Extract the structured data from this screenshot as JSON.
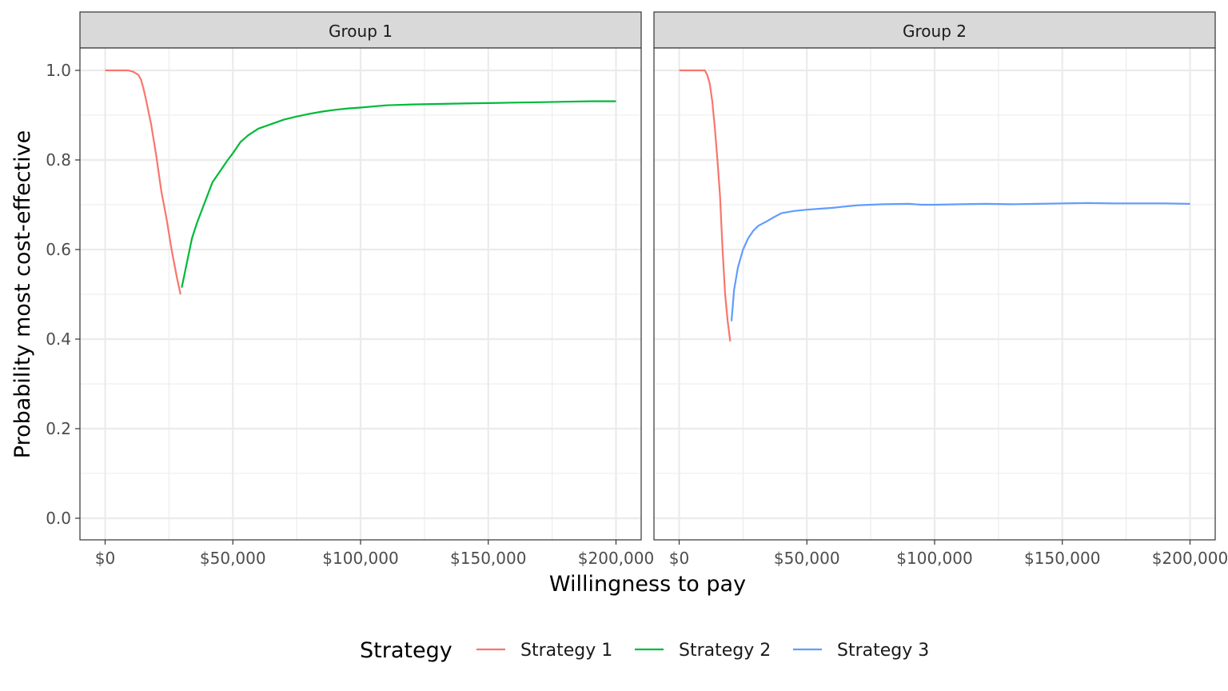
{
  "chart_data": {
    "type": "line",
    "xlabel": "Willingness to pay",
    "ylabel": "Probability most cost-effective",
    "xlim": [
      0,
      200000
    ],
    "ylim": [
      0,
      1
    ],
    "x_ticks": [
      0,
      50000,
      100000,
      150000,
      200000
    ],
    "x_tick_labels": [
      "$0",
      "$50,000",
      "$100,000",
      "$150,000",
      "$200,000"
    ],
    "y_ticks": [
      0,
      0.2,
      0.4,
      0.6,
      0.8,
      1.0
    ],
    "y_tick_labels": [
      "0.0",
      "0.2",
      "0.4",
      "0.6",
      "0.8",
      "1.0"
    ],
    "grid": true,
    "legend": {
      "title": "Strategy",
      "position": "bottom",
      "entries": [
        {
          "label": "Strategy 1",
          "color": "#F8766D"
        },
        {
          "label": "Strategy 2",
          "color": "#00BA38"
        },
        {
          "label": "Strategy 3",
          "color": "#619CFF"
        }
      ]
    },
    "panels": [
      {
        "label": "Group 1",
        "series": [
          {
            "name": "Strategy 1",
            "color": "#F8766D",
            "x": [
              0,
              5000,
              9000,
              11000,
              13000,
              14000,
              15000,
              16000,
              18000,
              20000,
              22000,
              24000,
              26000,
              28000,
              29500
            ],
            "y": [
              1.0,
              1.0,
              1.0,
              0.997,
              0.99,
              0.98,
              0.96,
              0.935,
              0.88,
              0.81,
              0.73,
              0.67,
              0.6,
              0.54,
              0.5
            ]
          },
          {
            "name": "Strategy 2",
            "color": "#00BA38",
            "x": [
              30000,
              32000,
              34000,
              36000,
              38000,
              40000,
              42000,
              45000,
              48000,
              50000,
              53000,
              56000,
              60000,
              65000,
              70000,
              75000,
              80000,
              85000,
              90000,
              95000,
              100000,
              110000,
              120000,
              130000,
              140000,
              150000,
              160000,
              170000,
              180000,
              190000,
              200000
            ],
            "y": [
              0.515,
              0.57,
              0.625,
              0.66,
              0.69,
              0.72,
              0.75,
              0.775,
              0.8,
              0.815,
              0.84,
              0.855,
              0.87,
              0.88,
              0.89,
              0.897,
              0.903,
              0.908,
              0.912,
              0.915,
              0.917,
              0.922,
              0.924,
              0.925,
              0.926,
              0.927,
              0.928,
              0.929,
              0.93,
              0.931,
              0.931
            ]
          }
        ]
      },
      {
        "label": "Group 2",
        "series": [
          {
            "name": "Strategy 1",
            "color": "#F8766D",
            "x": [
              0,
              5000,
              10000,
              11000,
              12000,
              13000,
              14000,
              15000,
              16000,
              17000,
              18000,
              19000,
              20000
            ],
            "y": [
              1.0,
              1.0,
              1.0,
              0.99,
              0.97,
              0.93,
              0.87,
              0.8,
              0.72,
              0.6,
              0.5,
              0.44,
              0.395
            ]
          },
          {
            "name": "Strategy 3",
            "color": "#619CFF",
            "x": [
              20500,
              21500,
              23000,
              25000,
              27000,
              29000,
              31000,
              34000,
              37000,
              40000,
              45000,
              50000,
              55000,
              60000,
              65000,
              70000,
              80000,
              90000,
              95000,
              100000,
              110000,
              120000,
              130000,
              140000,
              150000,
              160000,
              170000,
              180000,
              190000,
              200000
            ],
            "y": [
              0.44,
              0.51,
              0.56,
              0.6,
              0.625,
              0.642,
              0.653,
              0.662,
              0.672,
              0.681,
              0.686,
              0.689,
              0.691,
              0.693,
              0.696,
              0.699,
              0.701,
              0.702,
              0.7,
              0.7,
              0.701,
              0.702,
              0.701,
              0.702,
              0.703,
              0.704,
              0.703,
              0.703,
              0.703,
              0.702
            ]
          }
        ]
      }
    ]
  }
}
